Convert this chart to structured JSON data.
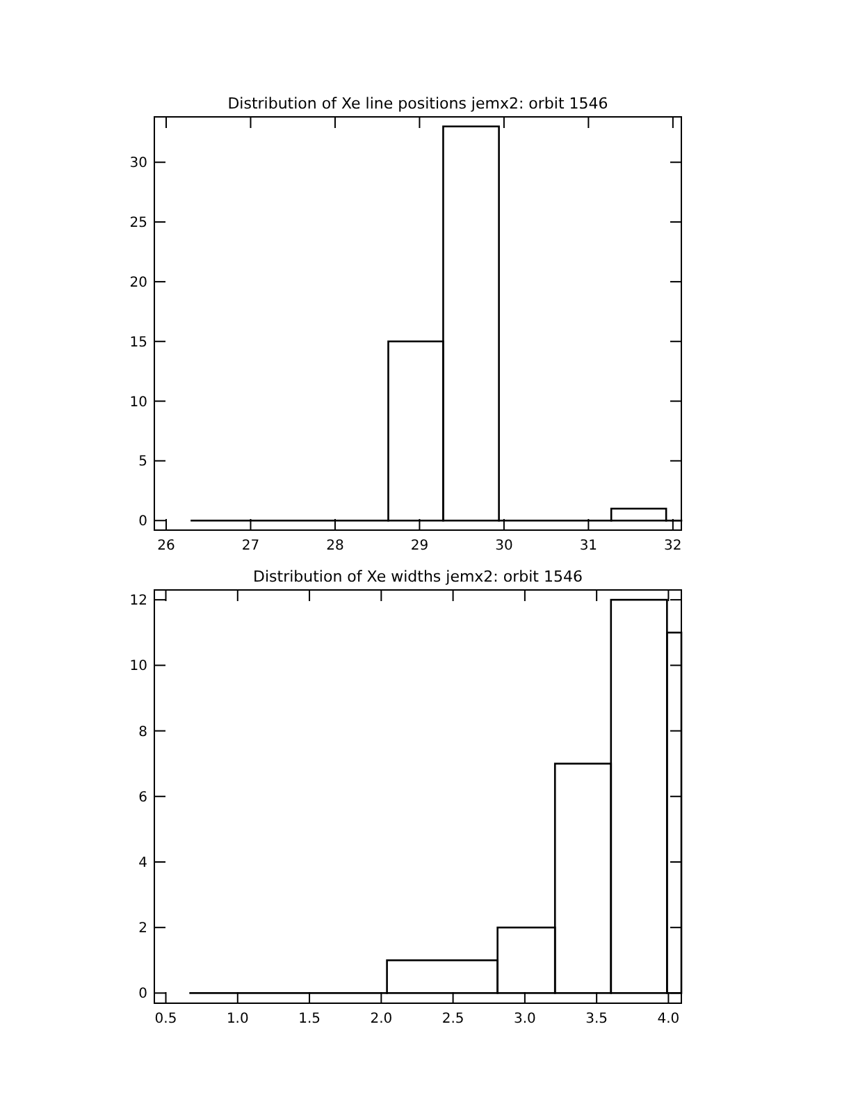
{
  "chart_data": [
    {
      "type": "histogram",
      "title": "Distribution of Xe line positions jemx2: orbit 1546",
      "color": "#000000",
      "bins": [
        26.3,
        28.63,
        29.28,
        29.94,
        31.27,
        31.92,
        32.1
      ],
      "values": [
        0,
        15,
        33,
        0,
        1,
        0
      ],
      "xlim": [
        25.86,
        32.1
      ],
      "xticks": [
        26,
        27,
        28,
        29,
        30,
        31,
        32
      ],
      "ylim": [
        -0.8,
        33.8
      ],
      "yticks": [
        0,
        5,
        10,
        15,
        20,
        25,
        30
      ]
    },
    {
      "type": "histogram",
      "title": "Distribution of Xe widths jemx2: orbit 1546",
      "color": "#000000",
      "bins": [
        0.67,
        2.04,
        2.81,
        3.21,
        3.6,
        3.99,
        4.09
      ],
      "values": [
        0,
        1,
        2,
        7,
        12,
        11
      ],
      "xlim": [
        0.42,
        4.09
      ],
      "xticks": [
        {
          "value": 0.5,
          "label": "0.5"
        },
        {
          "value": 1,
          "label": "1.0"
        },
        {
          "value": 1.5,
          "label": "1.5"
        },
        {
          "value": 2,
          "label": "2.0"
        },
        {
          "value": 2.5,
          "label": "2.5"
        },
        {
          "value": 3,
          "label": "3.0"
        },
        {
          "value": 3.5,
          "label": "3.5"
        },
        {
          "value": 4,
          "label": "4.0"
        }
      ],
      "ylim": [
        -0.31,
        12.3
      ],
      "yticks": [
        0,
        2,
        4,
        6,
        8,
        10,
        12
      ]
    }
  ]
}
